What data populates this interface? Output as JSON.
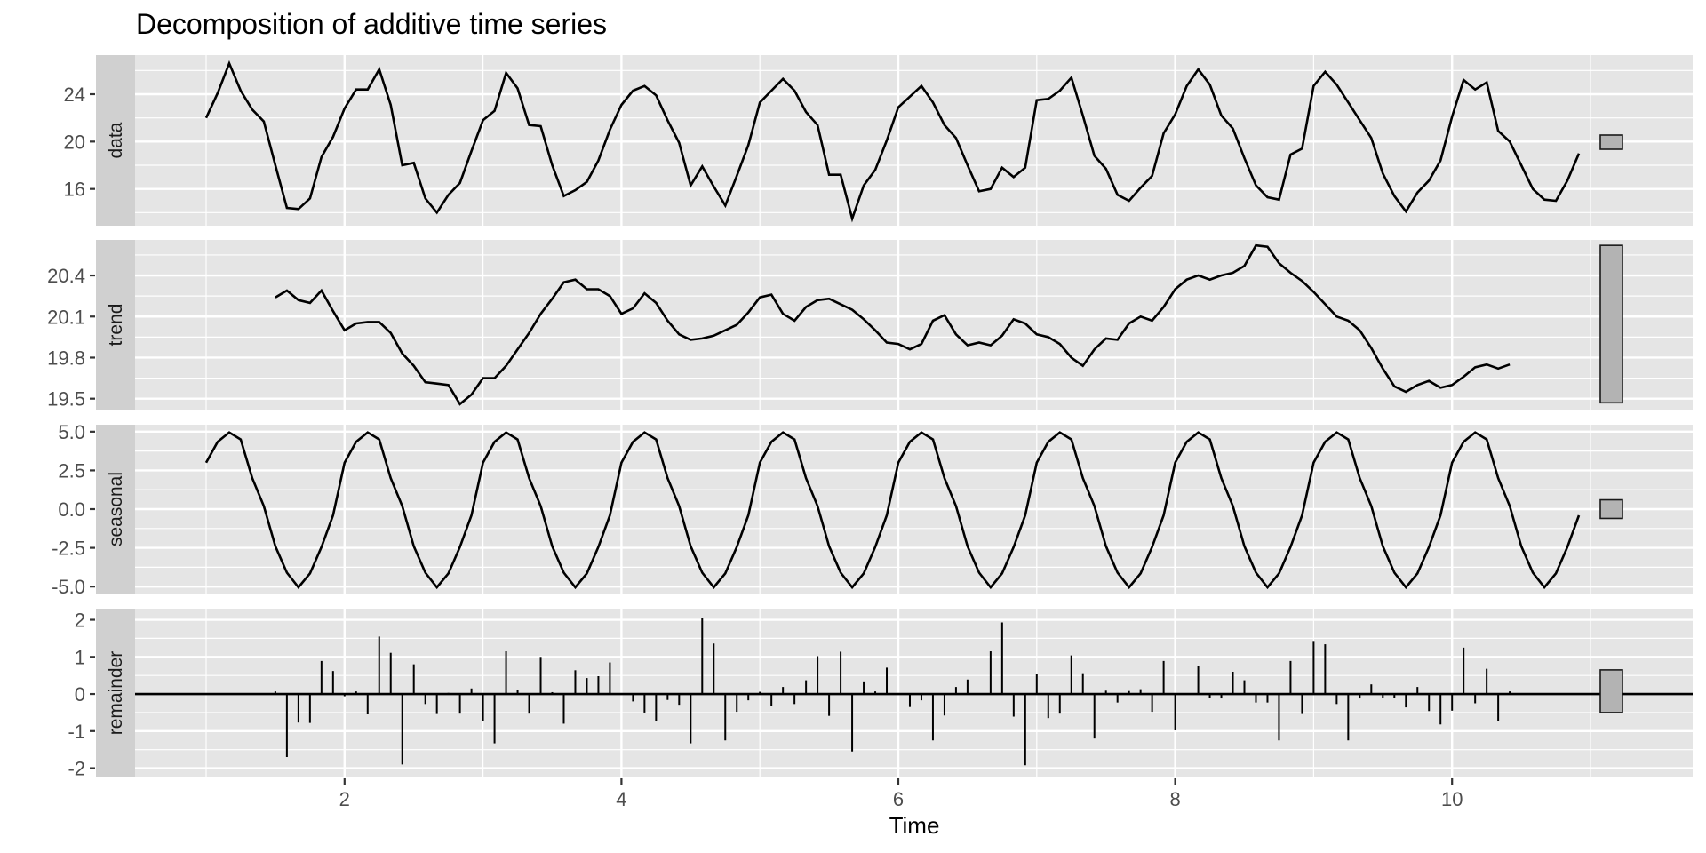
{
  "title": "Decomposition of additive time series",
  "colors": {
    "panel_bg": "#e5e5e5",
    "grid_major": "#ffffff",
    "strip_bg": "#d0d0d0",
    "line": "#000000",
    "scale_bar_fill": "#b3b3b3",
    "tick_text": "#4d4d4d"
  },
  "chart_data": {
    "type": "line",
    "title": "Decomposition of additive time series",
    "xlabel": "Time",
    "ylabel": "",
    "xlim": [
      0.5,
      11.6
    ],
    "x_ticks": [
      2,
      4,
      6,
      8,
      10
    ],
    "grid": true,
    "frequency": 12,
    "panels": [
      {
        "name": "data",
        "strip_label": "data",
        "geom": "line",
        "ylim": [
          12.9,
          27.3
        ],
        "y_ticks": [
          16,
          20,
          24
        ],
        "y_tick_labels": [
          "16",
          "20",
          "24"
        ],
        "start": 1.0,
        "values": [
          22.0,
          24.1,
          26.6,
          24.3,
          22.7,
          21.7,
          18.0,
          14.4,
          14.3,
          15.2,
          18.7,
          20.4,
          22.8,
          24.4,
          24.4,
          26.1,
          23.1,
          18.0,
          18.2,
          15.2,
          14.0,
          15.5,
          16.5,
          19.2,
          21.8,
          22.6,
          25.8,
          24.5,
          21.4,
          21.3,
          18.0,
          15.4,
          15.9,
          16.6,
          18.4,
          21.0,
          23.1,
          24.3,
          24.7,
          23.9,
          21.8,
          19.9,
          16.3,
          17.9,
          16.2,
          14.6,
          17.1,
          19.7,
          23.3,
          24.3,
          25.3,
          24.3,
          22.5,
          21.4,
          17.2,
          17.2,
          13.5,
          16.3,
          17.6,
          20.1,
          22.9,
          23.8,
          24.7,
          23.3,
          21.4,
          20.3,
          18.0,
          15.8,
          16.0,
          17.8,
          17.0,
          17.8,
          23.5,
          23.6,
          24.3,
          25.4,
          22.2,
          18.8,
          17.7,
          15.5,
          15.0,
          16.1,
          17.1,
          20.7,
          22.3,
          24.7,
          26.1,
          24.8,
          22.2,
          21.1,
          18.6,
          16.3,
          15.3,
          15.1,
          18.9,
          19.4,
          24.7,
          25.9,
          24.8,
          23.3,
          21.8,
          20.3,
          17.3,
          15.4,
          14.1,
          15.7,
          16.7,
          18.4,
          22.1,
          25.2,
          24.4,
          25.0,
          20.9,
          20.0,
          18.0,
          16.0,
          15.1,
          15.0,
          16.7,
          19.0
        ],
        "scale_bar": {
          "ymin": 19.35,
          "ymax": 20.55
        }
      },
      {
        "name": "trend",
        "strip_label": "trend",
        "geom": "line",
        "ylim": [
          19.42,
          20.66
        ],
        "y_ticks": [
          19.5,
          19.8,
          20.1,
          20.4
        ],
        "y_tick_labels": [
          "19.5",
          "19.8",
          "20.1",
          "20.4"
        ],
        "start": 1.5,
        "values": [
          20.24,
          20.29,
          20.22,
          20.2,
          20.29,
          20.14,
          20.0,
          20.05,
          20.06,
          20.06,
          19.98,
          19.83,
          19.74,
          19.62,
          19.61,
          19.6,
          19.46,
          19.53,
          19.65,
          19.65,
          19.74,
          19.86,
          19.98,
          20.12,
          20.23,
          20.35,
          20.37,
          20.3,
          20.3,
          20.25,
          20.12,
          20.16,
          20.27,
          20.2,
          20.07,
          19.97,
          19.93,
          19.94,
          19.96,
          20.0,
          20.04,
          20.13,
          20.24,
          20.26,
          20.12,
          20.07,
          20.17,
          20.22,
          20.23,
          20.19,
          20.15,
          20.08,
          20.0,
          19.91,
          19.9,
          19.86,
          19.9,
          20.07,
          20.11,
          19.97,
          19.89,
          19.91,
          19.89,
          19.96,
          20.08,
          20.05,
          19.97,
          19.95,
          19.9,
          19.8,
          19.74,
          19.86,
          19.94,
          19.93,
          20.05,
          20.1,
          20.07,
          20.17,
          20.3,
          20.37,
          20.4,
          20.37,
          20.4,
          20.42,
          20.47,
          20.62,
          20.61,
          20.49,
          20.42,
          20.36,
          20.28,
          20.19,
          20.1,
          20.07,
          20.0,
          19.87,
          19.72,
          19.59,
          19.55,
          19.6,
          19.63,
          19.58,
          19.6,
          19.66,
          19.73,
          19.75,
          19.72,
          19.75
        ],
        "scale_bar": {
          "ymin": 19.47,
          "ymax": 20.62
        }
      },
      {
        "name": "seasonal",
        "strip_label": "seasonal",
        "geom": "line",
        "ylim": [
          -5.45,
          5.45
        ],
        "y_ticks": [
          -5.0,
          -2.5,
          0.0,
          2.5,
          5.0
        ],
        "y_tick_labels": [
          "-5.0",
          "-2.5",
          "0.0",
          "2.5",
          "5.0"
        ],
        "start": 1.0,
        "pattern": [
          3.0,
          4.35,
          4.95,
          4.5,
          2.0,
          0.2,
          -2.4,
          -4.1,
          -5.05,
          -4.15,
          -2.45,
          -0.4
        ],
        "n": 120,
        "scale_bar": {
          "ymin": -0.6,
          "ymax": 0.6
        }
      },
      {
        "name": "remainder",
        "strip_label": "remainder",
        "geom": "segment",
        "ylim": [
          -2.25,
          2.3
        ],
        "y_ticks": [
          -2,
          -1,
          0,
          1,
          2
        ],
        "y_tick_labels": [
          "-2",
          "-1",
          "0",
          "1",
          "2"
        ],
        "start": 1.5,
        "values": [
          0.07,
          -1.7,
          -0.77,
          -0.78,
          0.89,
          0.62,
          -0.06,
          0.07,
          -0.55,
          1.55,
          1.11,
          -1.9,
          0.8,
          -0.27,
          -0.54,
          0.03,
          -0.53,
          0.15,
          -0.74,
          -1.33,
          1.15,
          0.11,
          -0.53,
          1.0,
          0.05,
          -0.8,
          0.64,
          0.43,
          0.48,
          0.85,
          0.0,
          -0.2,
          -0.5,
          -0.74,
          -0.16,
          -0.29,
          -1.33,
          2.05,
          1.36,
          -1.25,
          -0.48,
          -0.17,
          0.06,
          -0.33,
          0.19,
          -0.27,
          0.37,
          1.02,
          -0.59,
          1.14,
          -1.55,
          0.34,
          0.07,
          0.71,
          0.0,
          -0.35,
          -0.17,
          -1.25,
          -0.58,
          0.19,
          0.39,
          0.0,
          1.15,
          1.93,
          -0.61,
          -1.92,
          0.55,
          -0.65,
          -0.53,
          1.04,
          0.56,
          -1.2,
          0.09,
          -0.23,
          0.08,
          0.13,
          -0.48,
          0.89,
          -0.98,
          0.0,
          0.75,
          -0.1,
          -0.12,
          0.6,
          0.37,
          -0.23,
          -0.23,
          -1.25,
          0.89,
          -0.54,
          1.43,
          1.34,
          -0.27,
          -1.25,
          -0.12,
          0.26,
          -0.11,
          -0.1,
          -0.36,
          0.19,
          -0.46,
          -0.82,
          -0.45,
          1.25,
          -0.25,
          0.68,
          -0.74,
          0.07
        ],
        "scale_bar": {
          "ymin": -0.5,
          "ymax": 0.65
        }
      }
    ]
  }
}
